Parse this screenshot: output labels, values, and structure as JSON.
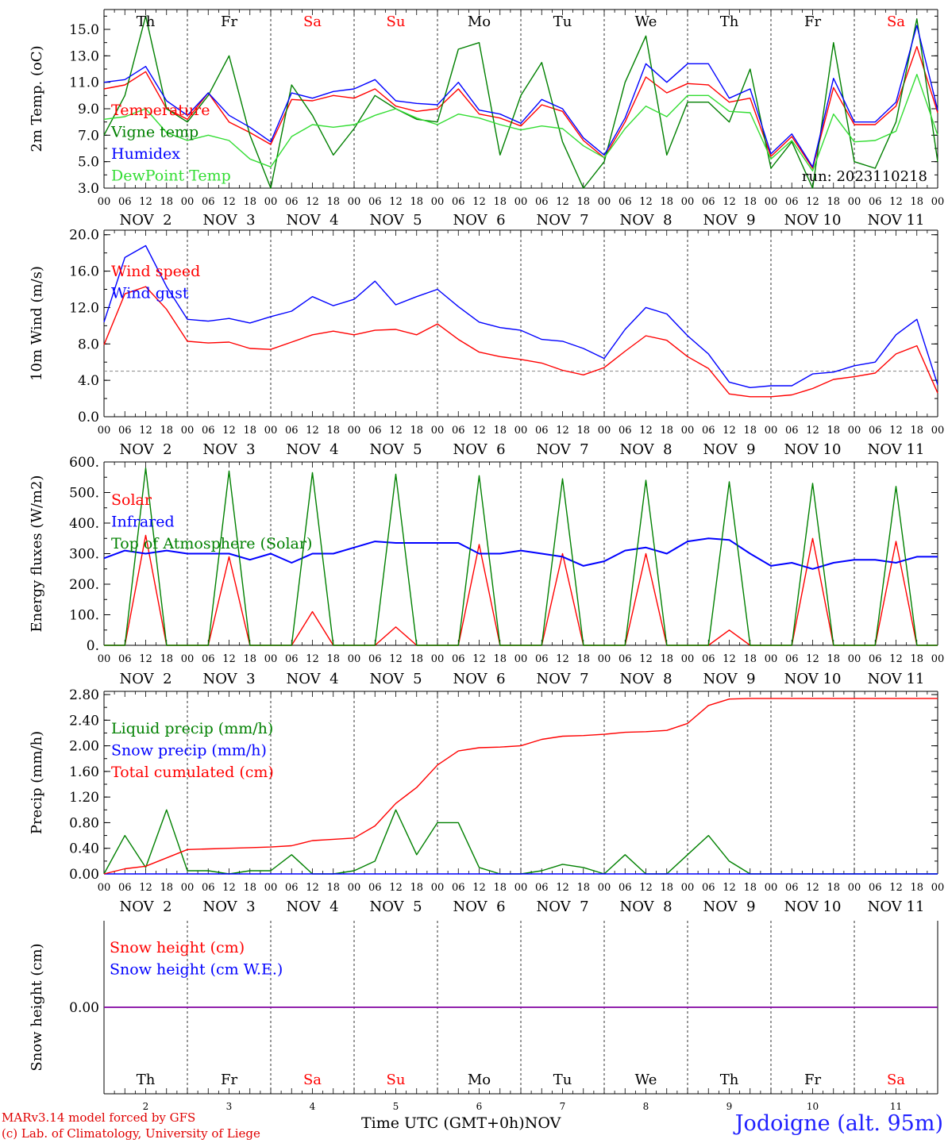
{
  "chart_data": [
    {
      "type": "line",
      "ylabel": "2m Temp. (oC)",
      "ylim": [
        3.0,
        16.5
      ],
      "yticks": [
        "3.0",
        "5.0",
        "7.0",
        "9.0",
        "11.0",
        "13.0",
        "15.0"
      ],
      "legend": [
        "Temperature",
        "Vigne temp",
        "Humidex",
        "DewPoint Temp"
      ],
      "annotation": "run: 2023110218",
      "x": [
        0,
        6,
        12,
        18,
        24,
        30,
        36,
        42,
        48,
        54,
        60,
        66,
        72,
        78,
        84,
        90,
        96,
        102,
        108,
        114,
        120,
        126,
        132,
        138,
        144,
        150,
        156,
        162,
        168,
        174,
        180,
        186,
        192,
        198,
        204,
        210,
        216,
        222,
        228,
        234,
        240
      ],
      "series": [
        {
          "name": "Temperature",
          "color": "#ff0000",
          "values": [
            10.5,
            10.8,
            11.8,
            9.0,
            8.2,
            10.2,
            8.0,
            7.2,
            6.3,
            9.7,
            9.6,
            10.0,
            9.8,
            10.5,
            9.2,
            8.8,
            9.0,
            10.5,
            8.6,
            8.3,
            7.7,
            9.3,
            8.8,
            6.6,
            5.3,
            8.0,
            11.4,
            10.2,
            10.9,
            10.8,
            9.5,
            9.8,
            5.4,
            6.9,
            4.5,
            10.6,
            7.8,
            7.8,
            9.2,
            13.7,
            8.7
          ]
        },
        {
          "name": "Vigne temp",
          "color": "#008000",
          "values": [
            7.0,
            10.0,
            16.0,
            9.0,
            8.0,
            10.0,
            13.0,
            7.0,
            3.0,
            10.8,
            8.5,
            5.5,
            7.5,
            10.0,
            9.0,
            8.2,
            8.0,
            13.5,
            14.0,
            5.5,
            10.0,
            12.5,
            6.5,
            3.0,
            5.0,
            11.0,
            14.5,
            5.5,
            9.5,
            9.5,
            8.0,
            12.0,
            4.5,
            6.5,
            3.0,
            14.0,
            5.0,
            4.5,
            8.0,
            15.8,
            5.0
          ]
        },
        {
          "name": "Humidex",
          "color": "#0000ff",
          "values": [
            11.0,
            11.2,
            12.2,
            9.6,
            8.5,
            10.2,
            8.5,
            7.6,
            6.5,
            10.2,
            9.8,
            10.3,
            10.5,
            11.2,
            9.6,
            9.4,
            9.3,
            11.0,
            8.9,
            8.6,
            7.9,
            9.7,
            9.0,
            6.8,
            5.5,
            8.3,
            12.4,
            11.0,
            12.4,
            12.4,
            9.8,
            10.5,
            5.6,
            7.1,
            4.6,
            11.3,
            8.0,
            8.0,
            9.5,
            15.3,
            8.9
          ]
        },
        {
          "name": "DewPoint Temp",
          "color": "#33dd33",
          "values": [
            8.2,
            8.4,
            9.0,
            7.2,
            6.6,
            7.0,
            6.6,
            5.2,
            4.6,
            6.9,
            7.8,
            7.6,
            7.8,
            8.5,
            9.0,
            8.3,
            7.8,
            8.6,
            8.3,
            7.8,
            7.4,
            7.7,
            7.5,
            6.2,
            5.3,
            7.5,
            9.2,
            8.4,
            10.0,
            10.0,
            8.8,
            8.7,
            5.2,
            6.6,
            4.3,
            8.6,
            6.5,
            6.6,
            7.3,
            11.6,
            7.0
          ]
        }
      ]
    },
    {
      "type": "line",
      "ylabel": "10m Wind (m/s)",
      "ylim": [
        0.0,
        20.5
      ],
      "yticks": [
        "0.0",
        "4.0",
        "8.0",
        "12.0",
        "16.0",
        "20.0"
      ],
      "legend": [
        "Wind speed",
        "Wind gust"
      ],
      "reference_line": 5.0,
      "x": [
        0,
        6,
        12,
        18,
        24,
        30,
        36,
        42,
        48,
        54,
        60,
        66,
        72,
        78,
        84,
        90,
        96,
        102,
        108,
        114,
        120,
        126,
        132,
        138,
        144,
        150,
        156,
        162,
        168,
        174,
        180,
        186,
        192,
        198,
        204,
        210,
        216,
        222,
        228,
        234,
        240
      ],
      "series": [
        {
          "name": "Wind speed",
          "color": "#ff0000",
          "values": [
            7.9,
            13.5,
            14.3,
            11.8,
            8.3,
            8.1,
            8.2,
            7.5,
            7.4,
            8.2,
            9.0,
            9.4,
            9.0,
            9.5,
            9.6,
            9.0,
            10.2,
            8.5,
            7.1,
            6.6,
            6.3,
            5.9,
            5.1,
            4.6,
            5.4,
            7.2,
            8.9,
            8.4,
            6.6,
            5.3,
            2.5,
            2.2,
            2.2,
            2.4,
            3.1,
            4.1,
            4.4,
            4.8,
            6.9,
            7.8,
            2.6
          ]
        },
        {
          "name": "Wind gust",
          "color": "#0000ff",
          "values": [
            10.4,
            17.5,
            18.8,
            14.3,
            10.7,
            10.5,
            10.8,
            10.3,
            11.0,
            11.6,
            13.2,
            12.2,
            12.9,
            14.9,
            12.3,
            13.2,
            14.0,
            12.1,
            10.4,
            9.8,
            9.5,
            8.5,
            8.3,
            7.5,
            6.4,
            9.6,
            12.0,
            11.3,
            8.9,
            6.9,
            3.8,
            3.2,
            3.4,
            3.4,
            4.7,
            4.9,
            5.6,
            6.0,
            9.0,
            10.7,
            3.5
          ]
        }
      ]
    },
    {
      "type": "line",
      "ylabel": "Energy fluxes (W/m2)",
      "ylim": [
        0,
        600
      ],
      "yticks": [
        "0.",
        "100.",
        "200.",
        "300.",
        "400.",
        "500.",
        "600."
      ],
      "legend": [
        "Solar",
        "Infrared",
        "Top of Atmosphere (Solar)"
      ],
      "x": [
        0,
        6,
        12,
        18,
        24,
        30,
        36,
        42,
        48,
        54,
        60,
        66,
        72,
        78,
        84,
        90,
        96,
        102,
        108,
        114,
        120,
        126,
        132,
        138,
        144,
        150,
        156,
        162,
        168,
        174,
        180,
        186,
        192,
        198,
        204,
        210,
        216,
        222,
        228,
        234,
        240
      ],
      "series": [
        {
          "name": "Solar",
          "color": "#ff0000",
          "values": [
            0,
            0,
            360,
            0,
            0,
            0,
            290,
            0,
            0,
            0,
            110,
            0,
            0,
            0,
            60,
            0,
            0,
            0,
            330,
            0,
            0,
            0,
            300,
            0,
            0,
            0,
            300,
            0,
            0,
            0,
            50,
            0,
            0,
            0,
            350,
            0,
            0,
            0,
            340,
            0,
            0
          ]
        },
        {
          "name": "Infrared",
          "color": "#0000ff",
          "values": [
            285,
            310,
            300,
            310,
            300,
            300,
            300,
            280,
            300,
            270,
            300,
            300,
            320,
            340,
            335,
            335,
            335,
            335,
            300,
            300,
            310,
            300,
            290,
            260,
            275,
            310,
            320,
            300,
            340,
            350,
            345,
            300,
            260,
            270,
            250,
            270,
            280,
            280,
            270,
            290,
            290
          ]
        },
        {
          "name": "Top of Atmosphere (Solar)",
          "color": "#008000",
          "values": [
            0,
            0,
            580,
            0,
            0,
            0,
            570,
            0,
            0,
            0,
            565,
            0,
            0,
            0,
            560,
            0,
            0,
            0,
            555,
            0,
            0,
            0,
            545,
            0,
            0,
            0,
            540,
            0,
            0,
            0,
            535,
            0,
            0,
            0,
            530,
            0,
            0,
            0,
            520,
            0,
            0
          ]
        }
      ]
    },
    {
      "type": "line",
      "ylabel": "Precip (mm/h)",
      "ylim": [
        0.0,
        2.85
      ],
      "yticks": [
        "0.00",
        "0.40",
        "0.80",
        "1.20",
        "1.60",
        "2.00",
        "2.40",
        "2.80"
      ],
      "legend": [
        "Liquid precip (mm/h)",
        "Snow precip (mm/h)",
        "Total cumulated (cm)"
      ],
      "x": [
        0,
        6,
        12,
        18,
        24,
        30,
        36,
        42,
        48,
        54,
        60,
        66,
        72,
        78,
        84,
        90,
        96,
        102,
        108,
        114,
        120,
        126,
        132,
        138,
        144,
        150,
        156,
        162,
        168,
        174,
        180,
        186,
        192,
        198,
        204,
        210,
        216,
        222,
        228,
        234,
        240
      ],
      "series": [
        {
          "name": "Liquid precip (mm/h)",
          "color": "#008000",
          "values": [
            0,
            0.6,
            0.1,
            1.0,
            0.05,
            0.05,
            0,
            0.05,
            0.05,
            0.3,
            0,
            0,
            0.05,
            0.2,
            1.0,
            0.3,
            0.8,
            0.8,
            0.1,
            0,
            0,
            0.05,
            0.15,
            0.1,
            0,
            0.3,
            0,
            0,
            0.3,
            0.6,
            0.2,
            0,
            0,
            0,
            0,
            0,
            0,
            0,
            0,
            0,
            0
          ]
        },
        {
          "name": "Snow precip (mm/h)",
          "color": "#0000ff",
          "values": [
            0,
            0,
            0,
            0,
            0,
            0,
            0,
            0,
            0,
            0,
            0,
            0,
            0,
            0,
            0,
            0,
            0,
            0,
            0,
            0,
            0,
            0,
            0,
            0,
            0,
            0,
            0,
            0,
            0,
            0,
            0,
            0,
            0,
            0,
            0,
            0,
            0,
            0,
            0,
            0,
            0
          ]
        },
        {
          "name": "Total cumulated (cm)",
          "color": "#ff0000",
          "values": [
            0,
            0.08,
            0.12,
            0.25,
            0.38,
            0.39,
            0.4,
            0.41,
            0.42,
            0.44,
            0.52,
            0.54,
            0.56,
            0.75,
            1.1,
            1.35,
            1.7,
            1.92,
            1.97,
            1.98,
            2.0,
            2.1,
            2.15,
            2.16,
            2.18,
            2.21,
            2.22,
            2.24,
            2.35,
            2.63,
            2.73,
            2.74,
            2.74,
            2.74,
            2.74,
            2.74,
            2.74,
            2.74,
            2.74,
            2.74,
            2.74
          ]
        }
      ]
    },
    {
      "type": "line",
      "ylabel": "Snow height (cm)",
      "ylim": [
        -1,
        1
      ],
      "yticks": [
        "0.00"
      ],
      "legend": [
        "Snow height (cm)",
        "Snow height (cm W.E.)"
      ],
      "x": [
        0,
        240
      ],
      "series": [
        {
          "name": "Snow height (cm)",
          "color": "#ff0000",
          "values": [
            0,
            0
          ]
        },
        {
          "name": "Snow height (cm W.E.)",
          "color": "#0000ff",
          "values": [
            0,
            0
          ]
        }
      ]
    }
  ],
  "axis": {
    "hour_labels": [
      "00",
      "06",
      "12",
      "18"
    ],
    "end_hour_label": "00",
    "day_names": [
      "Th",
      "Fr",
      "Sa",
      "Su",
      "Mo",
      "Tu",
      "We",
      "Th",
      "Fr",
      "Sa"
    ],
    "weekend": [
      false,
      false,
      true,
      true,
      false,
      false,
      false,
      false,
      false,
      true
    ],
    "date_labels": [
      "NOV  2",
      "NOV  3",
      "NOV  4",
      "NOV  5",
      "NOV  6",
      "NOV  7",
      "NOV  8",
      "NOV  9",
      "NOV 10",
      "NOV 11"
    ],
    "day_numbers": [
      "2",
      "3",
      "4",
      "5",
      "6",
      "7",
      "8",
      "9",
      "10",
      "11"
    ],
    "bottom_month": "NOV",
    "xlabel": "Time UTC (GMT+0h)"
  },
  "colors": {
    "red": "#ff0000",
    "green": "#008000",
    "blue": "#0000ff",
    "lightgreen": "#33dd33",
    "weekend": "#ff0000",
    "purple": "#8000a0"
  },
  "footer": {
    "model": "MARv3.14 model forced by GFS",
    "credit": "(c) Lab. of Climatology, University of Liege",
    "location": "Jodoigne (alt. 95m)"
  }
}
